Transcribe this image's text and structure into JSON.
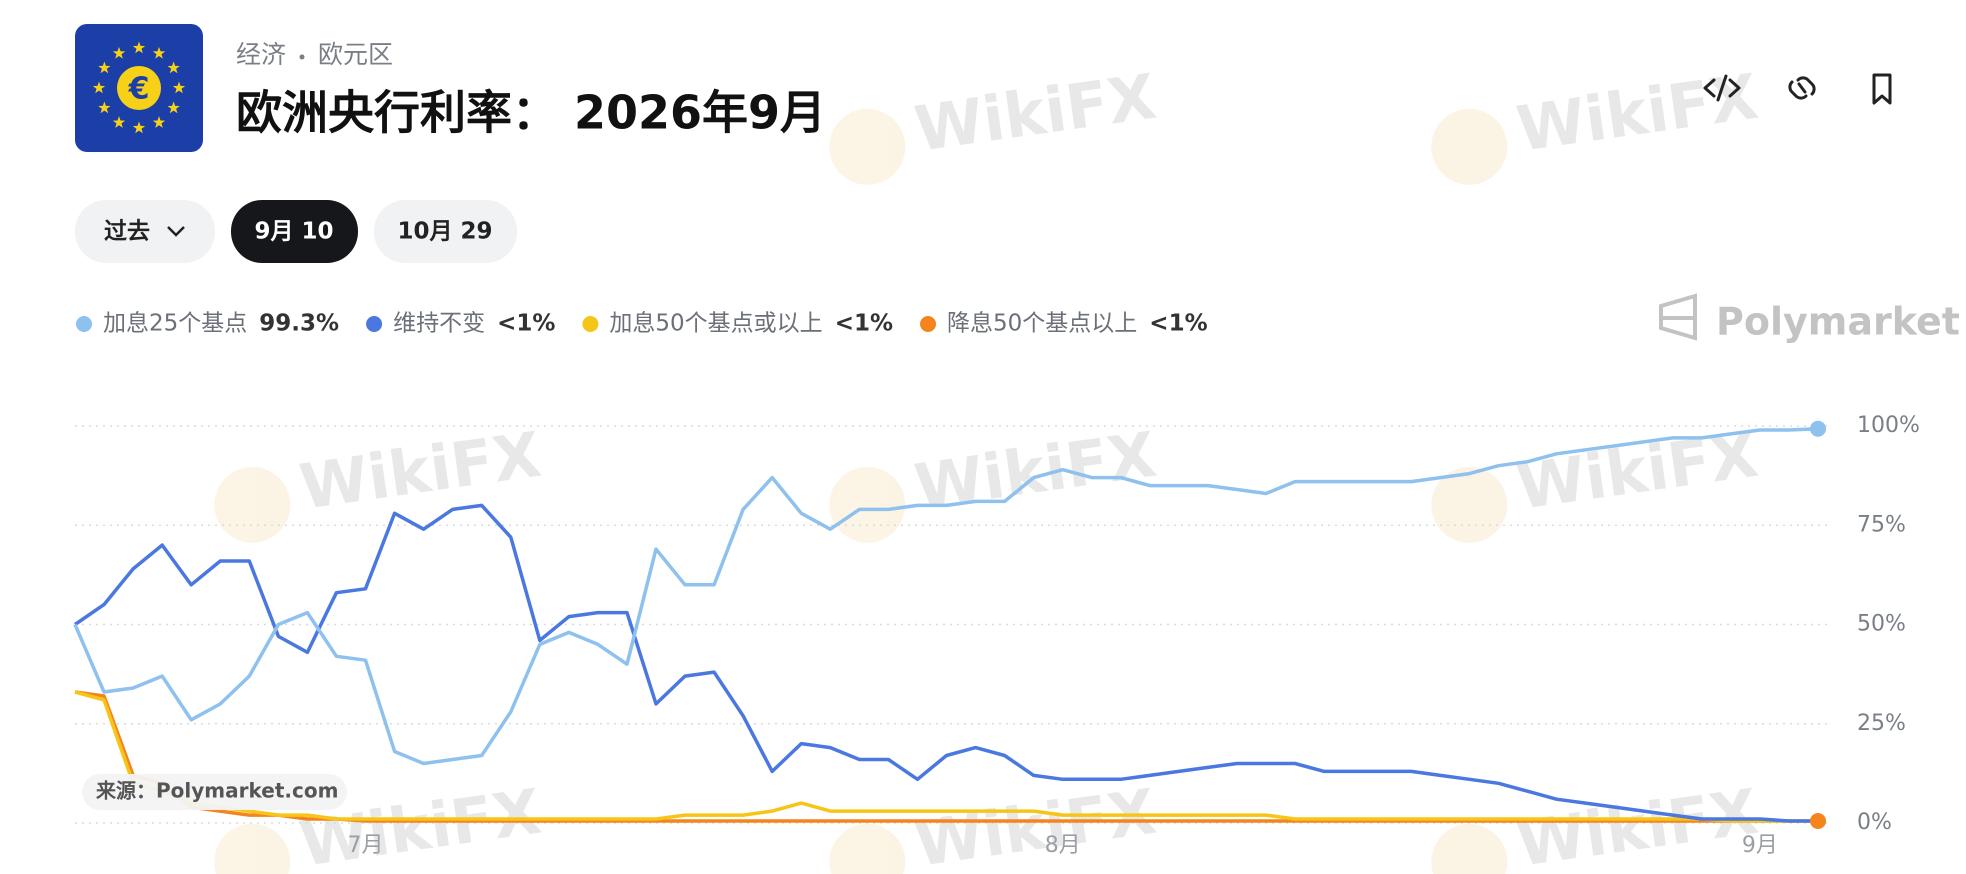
{
  "header": {
    "icon_symbol": "€",
    "category": "经济",
    "region": "欧元区",
    "title": "欧洲央行利率： 2026年9月"
  },
  "tabs": [
    "过去",
    "9月 10",
    "10月 29"
  ],
  "watermark": "WikiFX",
  "brand": "Polymarket",
  "source": "来源：Polymarket.com",
  "chart_data": {
    "type": "line",
    "categories": [
      null,
      null,
      null,
      null,
      null,
      null,
      null,
      null,
      null,
      null,
      "7月",
      null,
      null,
      null,
      null,
      null,
      null,
      null,
      null,
      null,
      null,
      null,
      null,
      null,
      null,
      null,
      null,
      null,
      null,
      null,
      null,
      null,
      null,
      null,
      "8月",
      null,
      null,
      null,
      null,
      null,
      null,
      null,
      null,
      null,
      null,
      null,
      null,
      null,
      null,
      null,
      null,
      null,
      null,
      null,
      null,
      null,
      null,
      null,
      "9月",
      null,
      null
    ],
    "ylim": [
      0,
      100
    ],
    "yticks": [
      {
        "value": 0,
        "label": "0%"
      },
      {
        "value": 25,
        "label": "25%"
      },
      {
        "value": 50,
        "label": "50%"
      },
      {
        "value": 75,
        "label": "75%"
      },
      {
        "value": 100,
        "label": "100%"
      }
    ],
    "grid": true,
    "series": [
      {
        "name": "加息25个基点",
        "color": "#8ec1ee",
        "current_label": "99.3%",
        "values": [
          50,
          33,
          34,
          37,
          26,
          30,
          37,
          50,
          53,
          42,
          41,
          18,
          15,
          16,
          17,
          28,
          45,
          48,
          45,
          40,
          69,
          60,
          60,
          79,
          87,
          78,
          74,
          79,
          79,
          80,
          80,
          81,
          81,
          87,
          89,
          87,
          87,
          85,
          85,
          85,
          84,
          83,
          86,
          86,
          86,
          86,
          86,
          87,
          88,
          90,
          91,
          93,
          94,
          95,
          96,
          97,
          97,
          98,
          99,
          99,
          99.3
        ]
      },
      {
        "name": "维持不变",
        "color": "#4a78e0",
        "current_label": "<1%",
        "values": [
          50,
          55,
          64,
          70,
          60,
          66,
          66,
          47,
          43,
          58,
          59,
          78,
          74,
          79,
          80,
          72,
          46,
          52,
          53,
          53,
          30,
          37,
          38,
          27,
          13,
          20,
          19,
          16,
          16,
          11,
          17,
          19,
          17,
          12,
          11,
          11,
          11,
          12,
          13,
          14,
          15,
          15,
          15,
          13,
          13,
          13,
          13,
          12,
          11,
          10,
          8,
          6,
          5,
          4,
          3,
          2,
          1,
          1,
          1,
          0.5,
          0.5
        ]
      },
      {
        "name": "加息50个基点或以上",
        "color": "#f5c518",
        "current_label": "<1%",
        "values": [
          33,
          31,
          10,
          8,
          5,
          4,
          3,
          2,
          2,
          1,
          1,
          1,
          1,
          1,
          1,
          1,
          1,
          1,
          1,
          1,
          1,
          2,
          2,
          2,
          3,
          5,
          3,
          3,
          3,
          3,
          3,
          3,
          3,
          3,
          2,
          2,
          2,
          2,
          2,
          2,
          2,
          2,
          1,
          1,
          1,
          1,
          1,
          1,
          1,
          1,
          1,
          1,
          1,
          1,
          1,
          1,
          1,
          0.5,
          0.5,
          0.5,
          0.5
        ]
      },
      {
        "name": "降息50个基点以上",
        "color": "#f5841f",
        "current_label": "<1%",
        "values": [
          33,
          32,
          12,
          10,
          4,
          3,
          2,
          2,
          1,
          1,
          0.5,
          0.5,
          0.5,
          0.5,
          0.5,
          0.5,
          0.5,
          0.5,
          0.5,
          0.5,
          0.5,
          0.5,
          0.5,
          0.5,
          0.5,
          0.5,
          0.5,
          0.5,
          0.5,
          0.5,
          0.5,
          0.5,
          0.5,
          0.5,
          0.5,
          0.5,
          0.5,
          0.5,
          0.5,
          0.5,
          0.5,
          0.5,
          0.5,
          0.5,
          0.5,
          0.5,
          0.5,
          0.5,
          0.5,
          0.5,
          0.5,
          0.5,
          0.5,
          0.5,
          0.5,
          0.5,
          0.5,
          0.5,
          0.5,
          0.5,
          0.5
        ]
      }
    ]
  }
}
